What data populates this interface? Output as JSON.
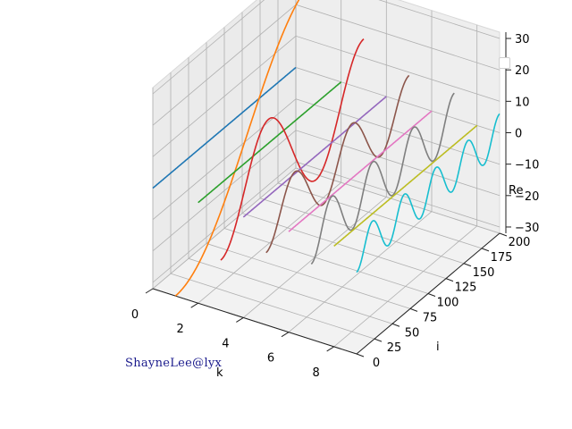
{
  "chart_data": {
    "type": "line",
    "title": "",
    "xlabel": "k",
    "ylabel": "i",
    "zlabel": "Re",
    "xlim": [
      0,
      9
    ],
    "ylim": [
      0,
      200
    ],
    "zlim": [
      -32,
      32
    ],
    "xticks": [
      "0",
      "2",
      "4",
      "6",
      "8"
    ],
    "yticks": [
      "0",
      "25",
      "50",
      "75",
      "100",
      "125",
      "150",
      "175",
      "200"
    ],
    "zticks": [
      "30",
      "20",
      "10",
      "0",
      "−10",
      "−20",
      "−30"
    ],
    "grid": true,
    "legend": "top-right, empty",
    "series_note": "Each curve is Re at fixed k over i = 0..200; amplitude drops for k≥1, oscillation frequency rises with k.",
    "series": [
      {
        "k": 0,
        "i_range": [
          0,
          200
        ],
        "amplitude": 0,
        "cycles": 0,
        "color": "#1f77b4"
      },
      {
        "k": 1,
        "i_range": [
          0,
          200
        ],
        "amplitude": 32,
        "cycles": 0.5,
        "color": "#ff7f0e"
      },
      {
        "k": 2,
        "i_range": [
          0,
          200
        ],
        "amplitude": 0,
        "cycles": 0,
        "color": "#2ca02c"
      },
      {
        "k": 3,
        "i_range": [
          0,
          200
        ],
        "amplitude": 16,
        "cycles": 1.5,
        "color": "#d62728"
      },
      {
        "k": 4,
        "i_range": [
          0,
          200
        ],
        "amplitude": 0,
        "cycles": 0,
        "color": "#9467bd"
      },
      {
        "k": 5,
        "i_range": [
          0,
          200
        ],
        "amplitude": 9,
        "cycles": 2.5,
        "color": "#8c564b"
      },
      {
        "k": 6,
        "i_range": [
          0,
          200
        ],
        "amplitude": 0,
        "cycles": 0,
        "color": "#e377c2"
      },
      {
        "k": 7,
        "i_range": [
          0,
          200
        ],
        "amplitude": 8,
        "cycles": 3.5,
        "color": "#7f7f7f"
      },
      {
        "k": 8,
        "i_range": [
          0,
          200
        ],
        "amplitude": 0,
        "cycles": 0,
        "color": "#bcbd22"
      },
      {
        "k": 9,
        "i_range": [
          0,
          200
        ],
        "amplitude": 6,
        "cycles": 4.5,
        "color": "#17becf"
      }
    ]
  },
  "watermark": "ShayneLee@lyx"
}
